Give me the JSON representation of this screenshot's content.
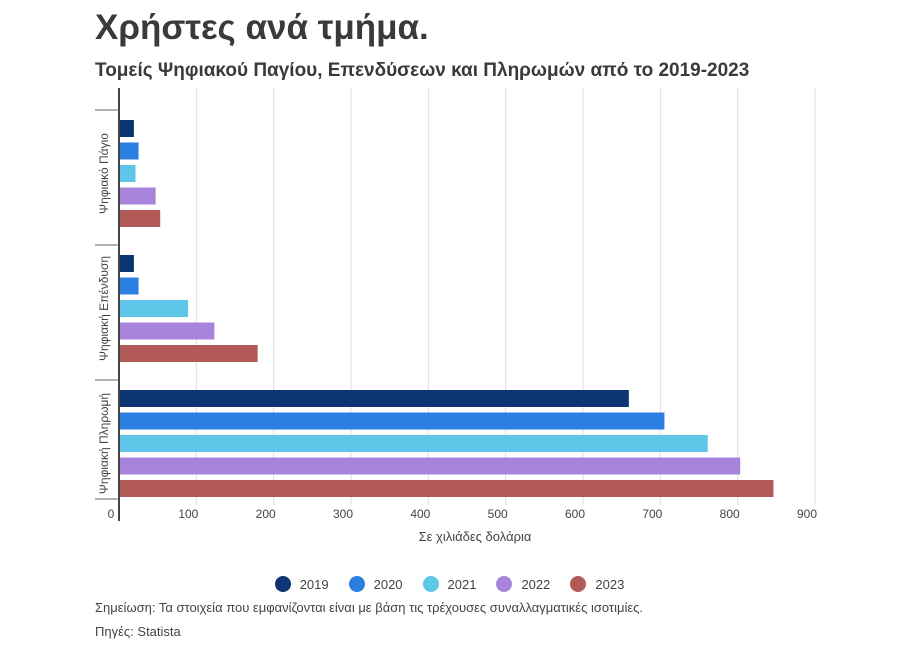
{
  "header": {
    "title": "Χρήστες ανά τμήμα.",
    "subtitle": "Τομείς Ψηφιακού Παγίου, Επενδύσεων και Πληρωμών από το 2019-2023"
  },
  "footer": {
    "note": "Σημείωση: Τα στοιχεία που εμφανίζονται είναι με βάση τις τρέχουσες συναλλαγματικές ισοτιμίες.",
    "source": "Πηγές: Statista"
  },
  "chart_data": {
    "type": "bar",
    "orientation": "horizontal",
    "categories": [
      "Ψηφιακό Πάγιο",
      "Ψηφιακή Επένδυση",
      "Ψηφιακή Πληρωμή"
    ],
    "series": [
      {
        "name": "2019",
        "color": "#0d3573",
        "values": [
          18,
          18,
          658
        ]
      },
      {
        "name": "2020",
        "color": "#2a7fe0",
        "values": [
          24,
          24,
          704
        ]
      },
      {
        "name": "2021",
        "color": "#5ec6e8",
        "values": [
          20,
          88,
          760
        ]
      },
      {
        "name": "2022",
        "color": "#a684dc",
        "values": [
          46,
          122,
          802
        ]
      },
      {
        "name": "2023",
        "color": "#b25a58",
        "values": [
          52,
          178,
          845
        ]
      }
    ],
    "xlabel": "Σε χιλιάδες δολάρια",
    "ylabel": "",
    "xlim": [
      0,
      900
    ],
    "xticks": [
      "0",
      "100",
      "200",
      "300",
      "400",
      "500",
      "600",
      "700",
      "800",
      "900"
    ],
    "grid": true,
    "legend_position": "bottom-center"
  }
}
